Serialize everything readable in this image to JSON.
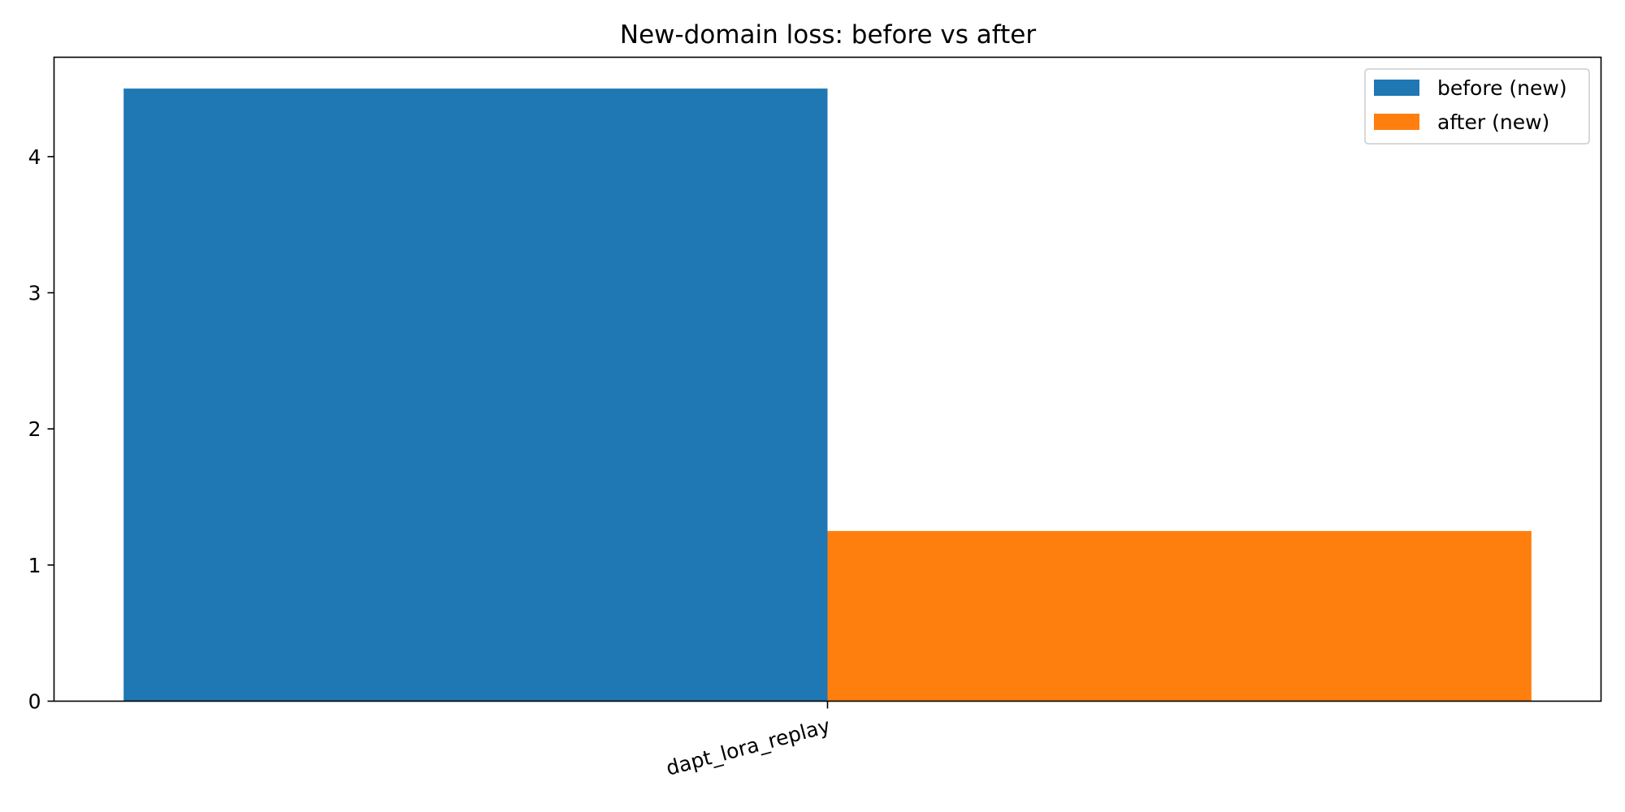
{
  "chart_data": {
    "type": "bar",
    "title": "New-domain loss: before vs after",
    "xlabel": "",
    "ylabel": "",
    "categories": [
      "dapt_lora_replay"
    ],
    "series": [
      {
        "name": "before (new)",
        "color": "#1f77b4",
        "values": [
          4.5
        ]
      },
      {
        "name": "after (new)",
        "color": "#ff7f0e",
        "values": [
          1.25
        ]
      }
    ],
    "ylim": [
      0,
      4.73
    ],
    "yticks": [
      0,
      1,
      2,
      3,
      4
    ],
    "legend_position": "top-right",
    "grid": false
  }
}
